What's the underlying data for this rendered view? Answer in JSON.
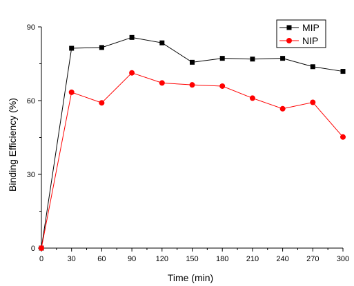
{
  "chart_data": {
    "type": "line",
    "xlabel": "Time (min)",
    "ylabel": "Binding Efficiency (%)",
    "xlim": [
      0,
      300
    ],
    "ylim": [
      0,
      90
    ],
    "xticks": [
      0,
      30,
      60,
      90,
      120,
      150,
      180,
      210,
      240,
      270,
      300
    ],
    "yticks": [
      0,
      30,
      60,
      90
    ],
    "grid": false,
    "legend_position": "top-right",
    "x": [
      0,
      30,
      60,
      90,
      120,
      150,
      180,
      210,
      240,
      270,
      300
    ],
    "series": [
      {
        "name": "MIP",
        "color": "#000000",
        "marker": "square",
        "values": [
          0,
          81.3,
          81.6,
          85.7,
          83.5,
          75.6,
          77.2,
          76.9,
          77.2,
          73.8,
          71.9
        ]
      },
      {
        "name": "NIP",
        "color": "#ff0000",
        "marker": "circle",
        "values": [
          0,
          63.4,
          59.1,
          71.3,
          67.2,
          66.4,
          65.9,
          61.0,
          56.7,
          59.3,
          45.2
        ]
      }
    ]
  }
}
